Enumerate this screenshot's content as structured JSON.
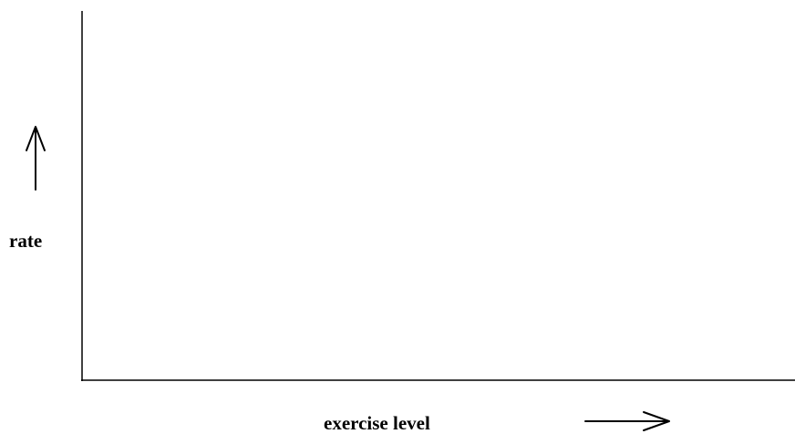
{
  "chart_data": {
    "type": "line",
    "title": "",
    "xlabel": "exercise level",
    "ylabel": "rate",
    "series": [],
    "grid": false,
    "x_direction_arrow": "right",
    "y_direction_arrow": "up",
    "axis_color": "#000000"
  }
}
